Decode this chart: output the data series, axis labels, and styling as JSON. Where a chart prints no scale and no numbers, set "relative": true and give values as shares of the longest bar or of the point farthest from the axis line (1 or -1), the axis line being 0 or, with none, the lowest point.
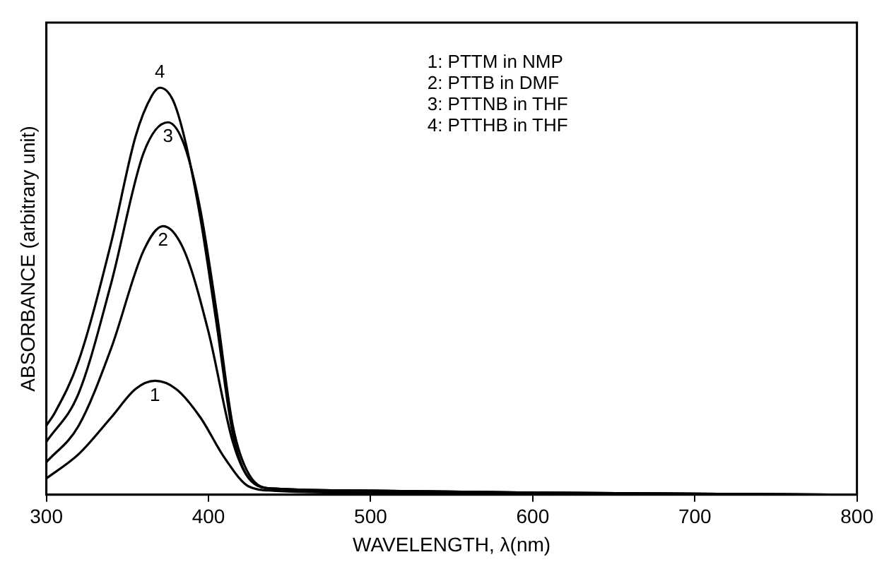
{
  "chart_data": {
    "type": "line",
    "relative": true,
    "xlabel": "WAVELENGTH, λ(nm)",
    "ylabel": "ABSORBANCE (arbitrary unit)",
    "xlim": [
      300,
      800
    ],
    "xticks": [
      300,
      400,
      500,
      600,
      700,
      800
    ],
    "grid": false,
    "legend": false,
    "marker": "none",
    "line_style": "solid",
    "annotations": [
      "1: PTTM in NMP",
      "2: PTTB in DMF",
      "3: PTTNB in THF",
      "4: PTTHB in THF"
    ],
    "series": [
      {
        "name": "1",
        "color": "#000000",
        "x": [
          300,
          320,
          340,
          355,
          367,
          380,
          395,
          410,
          425,
          440,
          500,
          600,
          800
        ],
        "values": [
          0.04,
          0.1,
          0.19,
          0.26,
          0.28,
          0.26,
          0.19,
          0.09,
          0.02,
          0.01,
          0.005,
          0.003,
          0
        ]
      },
      {
        "name": "2",
        "color": "#000000",
        "x": [
          300,
          320,
          340,
          360,
          372,
          385,
          400,
          415,
          425,
          440,
          500,
          600,
          800
        ],
        "values": [
          0.08,
          0.17,
          0.36,
          0.6,
          0.66,
          0.6,
          0.4,
          0.13,
          0.04,
          0.015,
          0.01,
          0.005,
          0
        ]
      },
      {
        "name": "3",
        "color": "#000000",
        "x": [
          300,
          320,
          340,
          360,
          375,
          385,
          395,
          405,
          415,
          425,
          440,
          500,
          600,
          800
        ],
        "values": [
          0.13,
          0.25,
          0.52,
          0.84,
          0.915,
          0.86,
          0.7,
          0.45,
          0.17,
          0.05,
          0.015,
          0.01,
          0.005,
          0
        ]
      },
      {
        "name": "4",
        "color": "#000000",
        "x": [
          300,
          305,
          320,
          340,
          355,
          365,
          370,
          378,
          385,
          395,
          405,
          415,
          425,
          440,
          500,
          600,
          800
        ],
        "values": [
          0.17,
          0.2,
          0.33,
          0.62,
          0.88,
          0.98,
          1,
          0.97,
          0.88,
          0.68,
          0.42,
          0.15,
          0.04,
          0.015,
          0.01,
          0.005,
          0
        ]
      }
    ]
  }
}
